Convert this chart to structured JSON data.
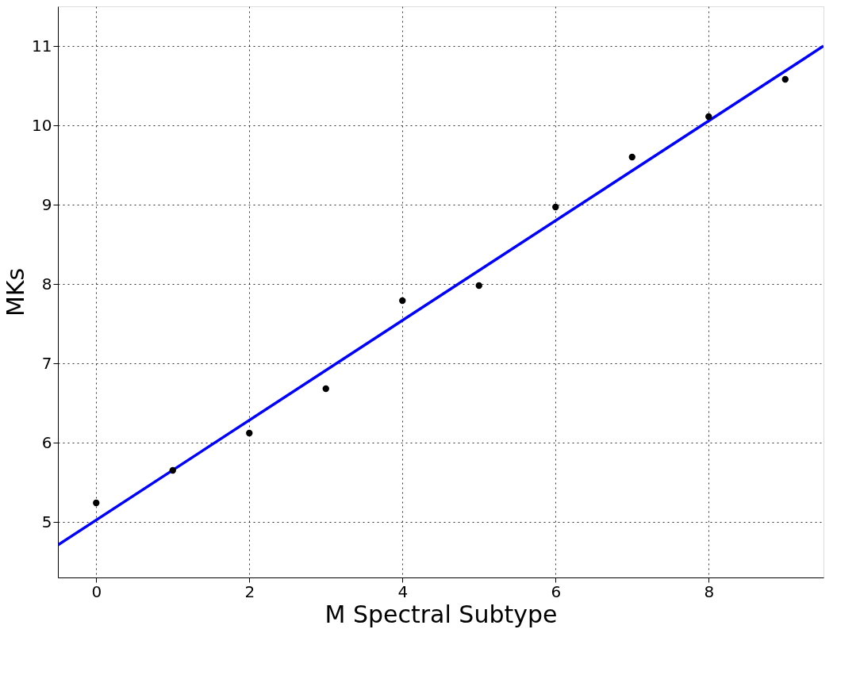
{
  "chart_data": {
    "type": "scatter",
    "xlabel": "M Spectral Subtype",
    "ylabel": "MKs",
    "x": [
      0,
      1,
      2,
      3,
      4,
      5,
      6,
      7,
      8,
      9
    ],
    "series": [
      {
        "color": "#000000",
        "marker": "circle",
        "values": [
          5.24,
          5.65,
          6.12,
          6.68,
          7.79,
          7.98,
          8.97,
          9.6,
          10.11,
          10.58
        ]
      },
      {
        "type": "line",
        "color": "#0000ff",
        "line_style": "solid",
        "x": [
          -0.5,
          9.5
        ],
        "values": [
          4.71,
          11.0
        ]
      }
    ],
    "xlim": [
      -0.5,
      9.5
    ],
    "ylim": [
      4.3,
      11.5
    ],
    "xticks": [
      0,
      2,
      4,
      6,
      8
    ],
    "yticks": [
      5,
      6,
      7,
      8,
      9,
      10,
      11
    ],
    "grid": true
  }
}
